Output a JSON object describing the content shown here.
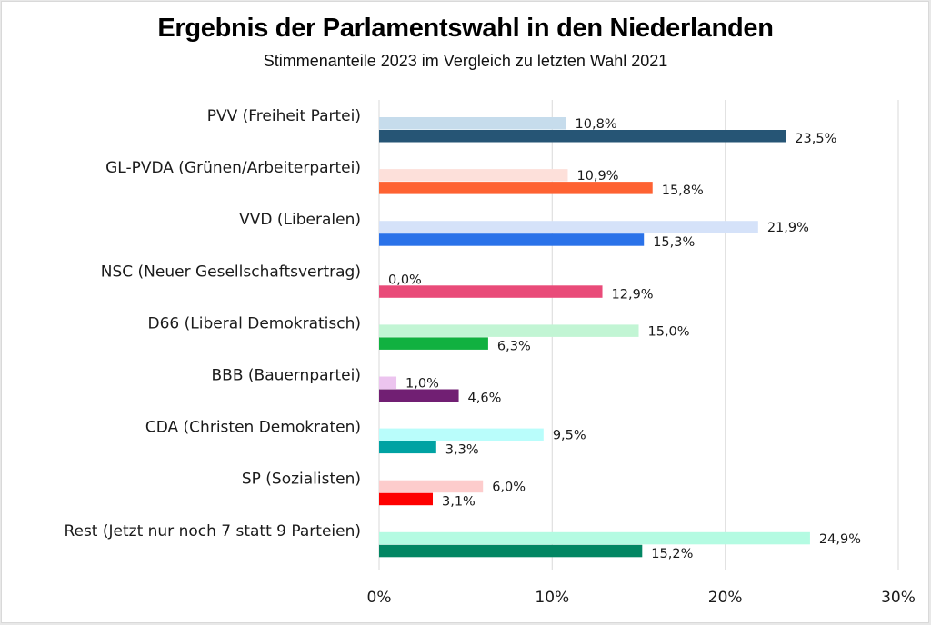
{
  "chart_data": {
    "type": "bar",
    "orientation": "horizontal",
    "title": "Ergebnis der Parlamentswahl in den Niederlanden",
    "subtitle": "Stimmenanteile 2023 im Vergleich zu letzten Wahl 2021",
    "xlabel": "",
    "ylabel": "",
    "xlim": [
      0,
      30
    ],
    "x_ticks": [
      0,
      10,
      20,
      30
    ],
    "x_tick_labels": [
      "0%",
      "10%",
      "20%",
      "30%"
    ],
    "grid": true,
    "legend": "none",
    "categories": [
      "PVV (Freiheit Partei)",
      "GL-PVDA (Grünen/Arbeiterpartei) ",
      "VVD (Liberalen)",
      "NSC (Neuer Gesellschaftsvertrag)",
      "D66 (Liberal Demokratisch)",
      "BBB (Bauernpartei)",
      "CDA (Christen Demokraten)",
      "SP (Sozialisten)",
      "Rest (Jetzt nur noch 7 statt 9 Parteien) "
    ],
    "series": [
      {
        "name": "2021",
        "values": [
          10.8,
          10.9,
          21.9,
          0.0,
          15.0,
          1.0,
          9.5,
          6.0,
          24.9
        ],
        "labels": [
          "10,8%",
          "10,9%",
          "21,9%",
          "0,0%",
          "15,0%",
          "1,0%",
          "9,5%",
          "6,0%",
          "24,9%"
        ],
        "colors": [
          "#c6dcec",
          "#fde0da",
          "#d5e2f9",
          "#fbd6e0",
          "#c2f5d4",
          "#ecc4ef",
          "#b9fdfb",
          "#fdcccc",
          "#b4fbe2"
        ]
      },
      {
        "name": "2023",
        "values": [
          23.5,
          15.8,
          15.3,
          12.9,
          6.3,
          4.6,
          3.3,
          3.1,
          15.2
        ],
        "labels": [
          "23,5%",
          "15,8%",
          "15,3%",
          "12,9%",
          "6,3%",
          "4,6%",
          "3,3%",
          "3,1%",
          "15,2%"
        ],
        "colors": [
          "#265575",
          "#fe6232",
          "#2a72e9",
          "#e94b79",
          "#11b140",
          "#711f73",
          "#00a2a3",
          "#fe0000",
          "#028663"
        ]
      }
    ]
  },
  "colors": {
    "gridline": "#e2e2e2",
    "text": "#1a1a1a",
    "background": "#ffffff"
  }
}
